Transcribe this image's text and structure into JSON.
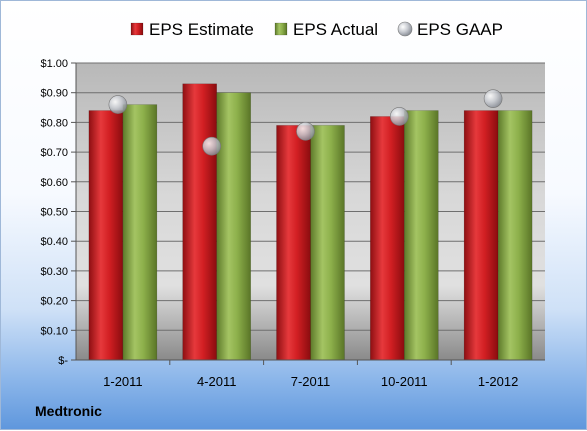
{
  "chart_data": {
    "type": "bar",
    "categories": [
      "1-2011",
      "4-2011",
      "7-2011",
      "10-2011",
      "1-2012"
    ],
    "series": [
      {
        "name": "EPS Estimate",
        "values": [
          0.84,
          0.93,
          0.79,
          0.82,
          0.84
        ],
        "color": "#d21f23",
        "kind": "bar"
      },
      {
        "name": "EPS Actual",
        "values": [
          0.86,
          0.9,
          0.79,
          0.84,
          0.84
        ],
        "color": "#8db04b",
        "kind": "bar"
      },
      {
        "name": "EPS GAAP",
        "values": [
          0.86,
          0.72,
          0.77,
          0.82,
          0.88
        ],
        "color": "#b8bcc4",
        "kind": "marker"
      }
    ],
    "yticks": [
      "$-",
      "$0.10",
      "$0.20",
      "$0.30",
      "$0.40",
      "$0.50",
      "$0.60",
      "$0.70",
      "$0.80",
      "$0.90",
      "$1.00"
    ],
    "ylim": [
      0,
      1.0
    ],
    "grid": true,
    "legend_position": "top"
  },
  "footer": {
    "company": "Medtronic"
  }
}
